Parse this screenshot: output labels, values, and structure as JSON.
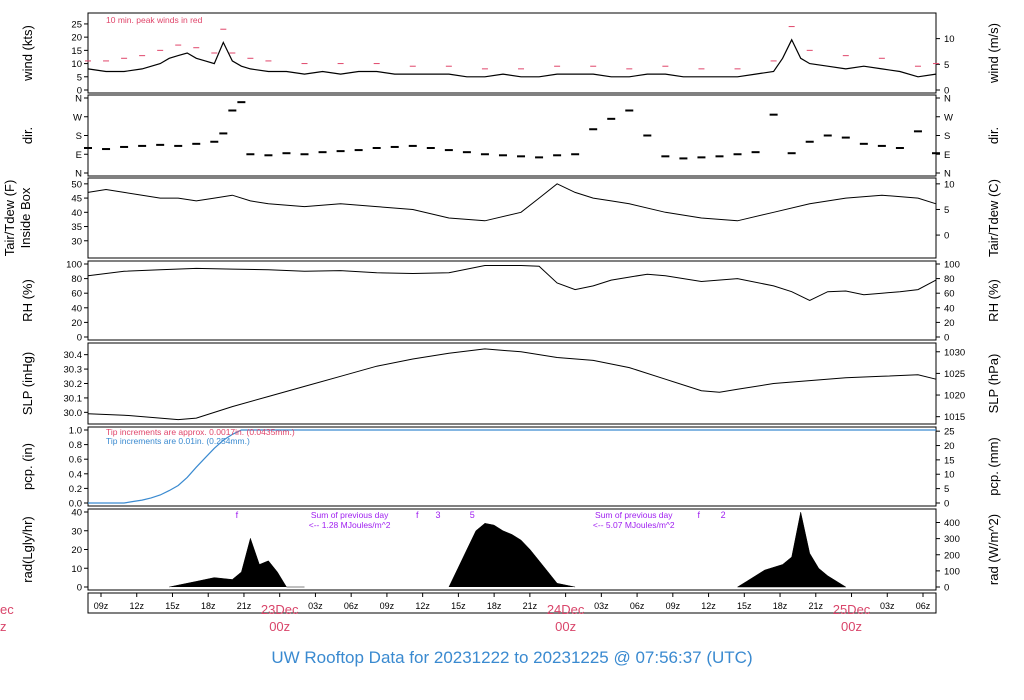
{
  "footer": {
    "title": "UW Rooftop Data for 20231222  to  20231225 @ 07:56:37  (UTC)",
    "cut_left_top": "ec",
    "cut_left_bottom": "z"
  },
  "colors": {
    "axis": "#000000",
    "peak_red": "#e0456a",
    "pcp_blue": "#3a8ad0",
    "purple": "#a020f0",
    "date_red": "#d9456a",
    "footer_blue": "#3a8ad0"
  },
  "chart_data": [
    {
      "type": "line",
      "panel": "wind",
      "ylabel_left": "wind (kts)",
      "ylabel_right": "wind (m/s)",
      "annotation": "10 min. peak winds in red",
      "ylim": [
        0,
        28
      ],
      "yticks_left": [
        "0",
        "5",
        "10",
        "15",
        "20",
        "25"
      ],
      "yticks_right": [
        "0",
        "5",
        "10"
      ],
      "xlim": [
        0,
        94
      ],
      "series": [
        {
          "name": "wind",
          "color": "#000000",
          "x": [
            0,
            2,
            4,
            6,
            8,
            9,
            10,
            11,
            12,
            13,
            14,
            15,
            16,
            17,
            18,
            20,
            22,
            24,
            26,
            28,
            30,
            32,
            34,
            36,
            38,
            40,
            42,
            44,
            46,
            48,
            50,
            52,
            54,
            56,
            58,
            60,
            62,
            64,
            66,
            68,
            70,
            72,
            74,
            76,
            77,
            78,
            79,
            80,
            82,
            84,
            86,
            88,
            90,
            92,
            94
          ],
          "y": [
            8,
            7,
            7,
            8,
            10,
            12,
            13,
            14,
            12,
            11,
            10,
            18,
            11,
            9,
            8,
            7,
            7,
            6,
            7,
            6,
            7,
            7,
            6,
            6,
            6,
            6,
            5,
            5,
            6,
            5,
            5,
            6,
            6,
            6,
            5,
            5,
            6,
            6,
            5,
            5,
            5,
            5,
            6,
            7,
            12,
            19,
            12,
            10,
            9,
            8,
            9,
            8,
            7,
            5,
            6
          ]
        },
        {
          "name": "10 min. peak",
          "color": "#e0456a",
          "x": [
            0,
            2,
            4,
            6,
            8,
            10,
            12,
            14,
            15,
            16,
            18,
            20,
            24,
            28,
            32,
            36,
            40,
            44,
            48,
            52,
            56,
            60,
            64,
            68,
            72,
            76,
            78,
            80,
            84,
            88,
            92,
            94
          ],
          "y": [
            11,
            11,
            12,
            13,
            15,
            17,
            16,
            14,
            23,
            14,
            12,
            11,
            10,
            10,
            10,
            9,
            9,
            8,
            8,
            9,
            9,
            8,
            9,
            8,
            8,
            11,
            24,
            15,
            13,
            12,
            9,
            10
          ]
        }
      ]
    },
    {
      "type": "scatter",
      "panel": "dir",
      "ylabel_left": "dir.",
      "ylabel_right": "dir.",
      "yticks_left": [
        "N",
        "E",
        "S",
        "W",
        "N"
      ],
      "yticks_right": [
        "N",
        "E",
        "S",
        "W",
        "N"
      ],
      "ylim": [
        0,
        360
      ],
      "xlim": [
        0,
        94
      ],
      "series": [
        {
          "name": "dir",
          "color": "#000000",
          "x": [
            0,
            2,
            4,
            6,
            8,
            10,
            12,
            14,
            15,
            16,
            17,
            18,
            20,
            22,
            24,
            26,
            28,
            30,
            32,
            34,
            36,
            38,
            40,
            42,
            44,
            46,
            48,
            50,
            52,
            54,
            56,
            58,
            60,
            62,
            64,
            66,
            68,
            70,
            72,
            74,
            76,
            78,
            80,
            82,
            84,
            86,
            88,
            90,
            92,
            94
          ],
          "y": [
            120,
            115,
            125,
            130,
            135,
            130,
            140,
            150,
            190,
            300,
            340,
            90,
            85,
            95,
            90,
            100,
            105,
            110,
            120,
            125,
            130,
            120,
            110,
            100,
            90,
            85,
            80,
            75,
            85,
            90,
            210,
            260,
            300,
            180,
            80,
            70,
            75,
            80,
            90,
            100,
            280,
            95,
            150,
            180,
            170,
            140,
            130,
            120,
            200,
            95
          ]
        }
      ]
    },
    {
      "type": "line",
      "panel": "temperature",
      "ylabel_left": "Tair/Tdew (F)",
      "ylabel_left2": "Inside Box",
      "ylabel_right": "Tair/Tdew (C)",
      "ylim": [
        25,
        51
      ],
      "yticks_left": [
        "30",
        "35",
        "40",
        "45",
        "50"
      ],
      "yticks_right": [
        "0",
        "5",
        "10"
      ],
      "xlim": [
        0,
        94
      ],
      "series": [
        {
          "name": "inside box",
          "color": "#000000",
          "x": [
            0,
            2,
            4,
            6,
            8,
            10,
            12,
            14,
            16,
            18,
            20,
            24,
            28,
            32,
            36,
            40,
            44,
            48,
            50,
            52,
            54,
            56,
            58,
            60,
            64,
            68,
            72,
            76,
            80,
            84,
            88,
            92,
            94
          ],
          "y": [
            47,
            48,
            47,
            46,
            45,
            45,
            44,
            45,
            46,
            44,
            43,
            42,
            43,
            42,
            41,
            38,
            37,
            40,
            45,
            50,
            47,
            45,
            44,
            43,
            40,
            38,
            37,
            40,
            43,
            45,
            46,
            45,
            43
          ]
        }
      ]
    },
    {
      "type": "line",
      "panel": "rh",
      "ylabel_left": "RH (%)",
      "ylabel_right": "RH (%)",
      "ylim": [
        0,
        100
      ],
      "yticks_left": [
        "0",
        "20",
        "40",
        "60",
        "80",
        "100"
      ],
      "yticks_right": [
        "0",
        "20",
        "40",
        "60",
        "80",
        "100"
      ],
      "xlim": [
        0,
        94
      ],
      "series": [
        {
          "name": "RH",
          "color": "#000000",
          "x": [
            0,
            4,
            8,
            12,
            16,
            20,
            24,
            28,
            32,
            36,
            40,
            44,
            48,
            50,
            52,
            54,
            56,
            58,
            60,
            62,
            64,
            68,
            72,
            76,
            78,
            80,
            82,
            84,
            86,
            88,
            90,
            92,
            94
          ],
          "y": [
            84,
            90,
            92,
            94,
            93,
            92,
            90,
            91,
            88,
            87,
            88,
            98,
            98,
            97,
            74,
            65,
            70,
            78,
            82,
            86,
            84,
            76,
            80,
            70,
            62,
            50,
            62,
            63,
            58,
            60,
            62,
            65,
            78
          ]
        }
      ]
    },
    {
      "type": "line",
      "panel": "slp",
      "ylabel_left": "SLP (inHg)",
      "ylabel_right": "SLP (hPa)",
      "ylim": [
        29.94,
        30.46
      ],
      "yticks_left": [
        "30.0",
        "30.1",
        "30.2",
        "30.3",
        "30.4"
      ],
      "yticks_right": [
        "1015",
        "1020",
        "1025",
        "1030"
      ],
      "xlim": [
        0,
        94
      ],
      "series": [
        {
          "name": "SLP",
          "color": "#000000",
          "x": [
            0,
            4,
            8,
            10,
            12,
            16,
            20,
            24,
            28,
            32,
            36,
            40,
            44,
            48,
            52,
            56,
            60,
            64,
            68,
            70,
            72,
            76,
            80,
            84,
            88,
            92,
            94
          ],
          "y": [
            29.99,
            29.98,
            29.96,
            29.95,
            29.96,
            30.04,
            30.11,
            30.18,
            30.25,
            30.32,
            30.37,
            30.41,
            30.44,
            30.42,
            30.38,
            30.36,
            30.31,
            30.23,
            30.15,
            30.14,
            30.16,
            30.2,
            30.22,
            30.24,
            30.25,
            30.26,
            30.23
          ]
        }
      ]
    },
    {
      "type": "line",
      "panel": "pcp",
      "ylabel_left": "pcp. (in)",
      "ylabel_right": "pcp. (mm)",
      "annotation_red": "Tip increments are approx. 0.0017in. (0.0435mm.)",
      "annotation_blue": "Tip increments are 0.01in. (0.254mm.)",
      "ylim": [
        0,
        1.0
      ],
      "yticks_left": [
        "0.0",
        "0.2",
        "0.4",
        "0.6",
        "0.8",
        "1.0"
      ],
      "yticks_right": [
        "0",
        "5",
        "10",
        "15",
        "20",
        "25"
      ],
      "xlim": [
        0,
        94
      ],
      "series": [
        {
          "name": "pcp",
          "color": "#3a8ad0",
          "x": [
            0,
            4,
            5,
            6,
            7,
            8,
            9,
            10,
            11,
            12,
            13,
            14,
            15,
            16,
            17,
            94
          ],
          "y": [
            0,
            0,
            0.02,
            0.04,
            0.07,
            0.11,
            0.17,
            0.24,
            0.35,
            0.49,
            0.62,
            0.75,
            0.86,
            0.94,
            1.0,
            1.0
          ]
        }
      ]
    },
    {
      "type": "area",
      "panel": "rad",
      "ylabel_left": "rad(Lgly/hr)",
      "ylabel_right": "rad (W/m^2)",
      "ylim": [
        0,
        40
      ],
      "yticks_left": [
        "0",
        "10",
        "20",
        "30",
        "40"
      ],
      "yticks_right": [
        "0",
        "100",
        "200",
        "300",
        "400"
      ],
      "xlim": [
        0,
        94
      ],
      "markers": [
        "f",
        "f",
        "3",
        "5",
        "f",
        "2"
      ],
      "notes": [
        {
          "line1": "Sum of previous day",
          "line2": "<-- 1.28 MJoules/m^2"
        },
        {
          "line1": "Sum of previous day",
          "line2": "<-- 5.07 MJoules/m^2"
        }
      ],
      "series": [
        {
          "name": "rad",
          "color": "#000000",
          "x": [
            9,
            10,
            12,
            14,
            16,
            17,
            18,
            19,
            20,
            21,
            22,
            24,
            40,
            41,
            42,
            43,
            44,
            45,
            46,
            47,
            48,
            49,
            50,
            51,
            52,
            54,
            72,
            73,
            75,
            77,
            78,
            79,
            80,
            81,
            82,
            84
          ],
          "y": [
            0,
            1,
            3,
            5,
            4,
            8,
            26,
            12,
            14,
            8,
            0,
            0,
            0,
            10,
            20,
            30,
            34,
            33,
            30,
            28,
            25,
            20,
            14,
            8,
            2,
            0,
            0,
            3,
            9,
            12,
            16,
            40,
            18,
            10,
            6,
            0
          ]
        }
      ]
    },
    {
      "type": "axis",
      "panel": "time",
      "xlim": [
        0,
        94
      ],
      "ticks": [
        {
          "x": 1,
          "label": "09z"
        },
        {
          "x": 4,
          "label": "12z"
        },
        {
          "x": 7,
          "label": "15z"
        },
        {
          "x": 10,
          "label": "18z"
        },
        {
          "x": 13,
          "label": "21z"
        },
        {
          "x": 16,
          "label": "23Dec",
          "label2": "00z"
        },
        {
          "x": 19,
          "label": "03z"
        },
        {
          "x": 22,
          "label": "06z"
        },
        {
          "x": 25,
          "label": "09z"
        },
        {
          "x": 28,
          "label": "12z"
        },
        {
          "x": 31,
          "label": "15z"
        },
        {
          "x": 34,
          "label": "18z"
        },
        {
          "x": 37,
          "label": "21z"
        },
        {
          "x": 40,
          "label": "24Dec",
          "label2": "00z"
        },
        {
          "x": 43,
          "label": "03z"
        },
        {
          "x": 46,
          "label": "06z"
        },
        {
          "x": 49,
          "label": "09z"
        },
        {
          "x": 52,
          "label": "12z"
        },
        {
          "x": 55,
          "label": "15z"
        },
        {
          "x": 58,
          "label": "18z"
        },
        {
          "x": 61,
          "label": "21z"
        },
        {
          "x": 64,
          "label": "25Dec",
          "label2": "00z"
        },
        {
          "x": 67,
          "label": "03z"
        },
        {
          "x": 70,
          "label": "06z"
        }
      ]
    }
  ]
}
